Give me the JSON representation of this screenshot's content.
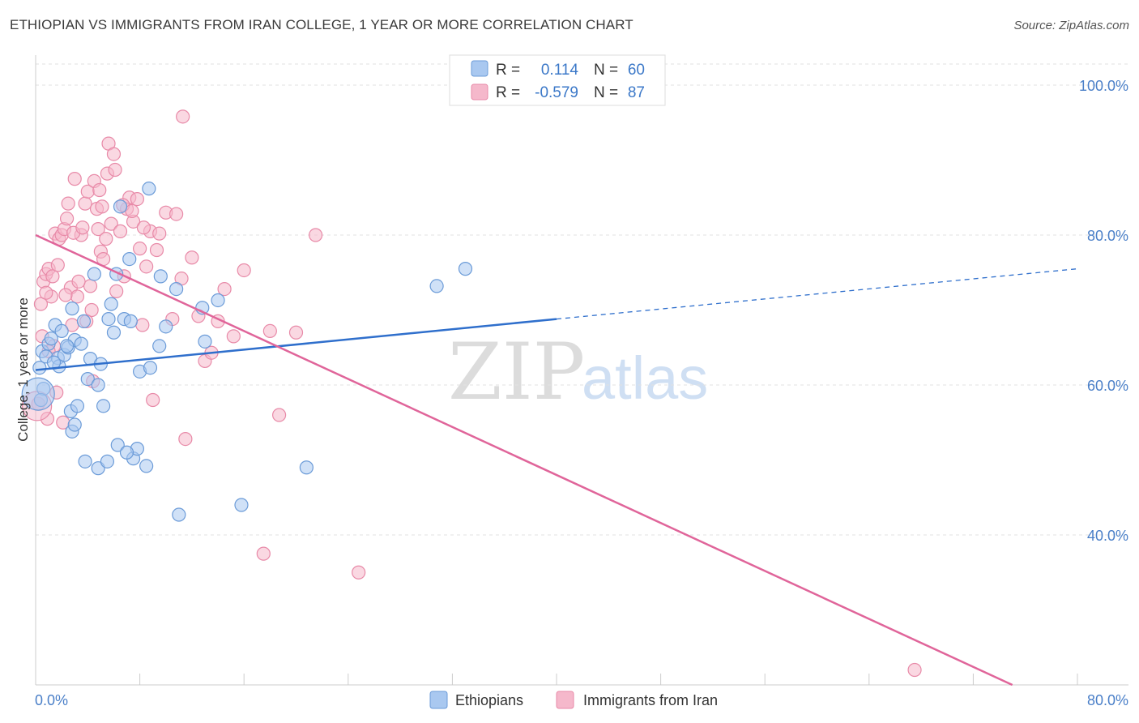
{
  "title": "ETHIOPIAN VS IMMIGRANTS FROM IRAN COLLEGE, 1 YEAR OR MORE CORRELATION CHART",
  "source": "Source: ZipAtlas.com",
  "watermark": {
    "zip": "ZIP",
    "atlas": "atlas"
  },
  "colors": {
    "blue_fill": "#a9c8f0",
    "blue_stroke": "#6b9bd8",
    "blue_line": "#2f6fcc",
    "pink_fill": "#f5b8cb",
    "pink_stroke": "#e88aa8",
    "pink_line": "#e0659a",
    "tick_text": "#4a7fc8",
    "grid": "#e2e2e2"
  },
  "stats": {
    "r_label": "R =",
    "n_label": "N =",
    "blue": {
      "r": "0.114",
      "n": "60"
    },
    "pink": {
      "r": "-0.579",
      "n": "87"
    }
  },
  "chart_data": {
    "type": "scatter",
    "xlabel": "",
    "ylabel": "College, 1 year or more",
    "xlim": [
      0,
      80
    ],
    "ylim": [
      20,
      104
    ],
    "x_tick_labels": [
      "0.0%",
      "80.0%"
    ],
    "y_ticks": [
      40,
      60,
      80,
      100
    ],
    "y_tick_labels": [
      "40.0%",
      "60.0%",
      "80.0%",
      "100.0%"
    ],
    "legend": [
      "Ethiopians",
      "Immigrants from Iran"
    ],
    "series": [
      {
        "name": "Ethiopians",
        "r": 0.114,
        "n": 60,
        "trend": {
          "x0": 0,
          "y0": 62.0,
          "x1": 40,
          "y1": 68.8,
          "x_dash_end": 80,
          "y_dash_end": 75.5
        },
        "points": [
          [
            0.3,
            62.3
          ],
          [
            0.5,
            64.5
          ],
          [
            0.8,
            63.8
          ],
          [
            1.0,
            65.5
          ],
          [
            1.2,
            66.2
          ],
          [
            1.5,
            68.0
          ],
          [
            1.7,
            63.6
          ],
          [
            1.8,
            62.5
          ],
          [
            2.0,
            67.2
          ],
          [
            2.2,
            64.0
          ],
          [
            2.5,
            65.0
          ],
          [
            2.7,
            56.5
          ],
          [
            2.8,
            70.2
          ],
          [
            3.0,
            66.0
          ],
          [
            3.2,
            57.2
          ],
          [
            3.5,
            65.5
          ],
          [
            3.7,
            68.5
          ],
          [
            4.0,
            60.8
          ],
          [
            4.2,
            63.5
          ],
          [
            4.5,
            74.8
          ],
          [
            4.8,
            60.0
          ],
          [
            5.0,
            62.8
          ],
          [
            5.2,
            57.2
          ],
          [
            5.6,
            68.8
          ],
          [
            5.8,
            70.8
          ],
          [
            6.0,
            67.0
          ],
          [
            6.2,
            74.8
          ],
          [
            6.5,
            83.8
          ],
          [
            6.8,
            68.8
          ],
          [
            7.2,
            76.8
          ],
          [
            7.5,
            50.2
          ],
          [
            7.8,
            51.5
          ],
          [
            8.0,
            61.8
          ],
          [
            8.5,
            49.2
          ],
          [
            8.7,
            86.2
          ],
          [
            8.8,
            62.3
          ],
          [
            9.5,
            65.2
          ],
          [
            9.6,
            74.5
          ],
          [
            10.0,
            67.8
          ],
          [
            10.8,
            72.8
          ],
          [
            11.0,
            42.7
          ],
          [
            12.8,
            70.3
          ],
          [
            13.0,
            65.8
          ],
          [
            14.0,
            71.3
          ],
          [
            15.8,
            44.0
          ],
          [
            20.8,
            49.0
          ],
          [
            30.8,
            73.2
          ],
          [
            33.0,
            75.5
          ],
          [
            4.8,
            48.9
          ],
          [
            5.5,
            49.8
          ],
          [
            3.8,
            49.8
          ],
          [
            2.8,
            53.8
          ],
          [
            3.0,
            54.7
          ],
          [
            6.3,
            52.0
          ],
          [
            7.0,
            51.0
          ],
          [
            0.6,
            59.5
          ],
          [
            0.4,
            58.0
          ],
          [
            1.4,
            63.0
          ],
          [
            2.4,
            65.2
          ],
          [
            7.3,
            68.5
          ]
        ]
      },
      {
        "name": "Immigrants from Iran",
        "r": -0.579,
        "n": 87,
        "trend": {
          "x0": 0,
          "y0": 80.0,
          "x1": 75,
          "y1": 20.0
        },
        "points": [
          [
            0.2,
            57.5
          ],
          [
            0.4,
            70.8
          ],
          [
            0.6,
            73.8
          ],
          [
            0.8,
            74.8
          ],
          [
            1.0,
            75.5
          ],
          [
            1.2,
            71.8
          ],
          [
            1.4,
            65.2
          ],
          [
            1.5,
            80.2
          ],
          [
            1.6,
            59.0
          ],
          [
            1.8,
            79.5
          ],
          [
            2.0,
            80.0
          ],
          [
            2.2,
            80.8
          ],
          [
            2.4,
            82.2
          ],
          [
            2.5,
            84.2
          ],
          [
            2.7,
            73.0
          ],
          [
            2.8,
            68.0
          ],
          [
            3.0,
            87.5
          ],
          [
            3.2,
            71.8
          ],
          [
            3.5,
            80.0
          ],
          [
            3.8,
            84.2
          ],
          [
            4.0,
            85.8
          ],
          [
            4.2,
            73.2
          ],
          [
            4.5,
            87.2
          ],
          [
            4.7,
            83.5
          ],
          [
            4.8,
            80.8
          ],
          [
            5.0,
            77.8
          ],
          [
            5.2,
            76.8
          ],
          [
            5.5,
            88.2
          ],
          [
            5.6,
            92.2
          ],
          [
            5.8,
            81.5
          ],
          [
            6.0,
            90.8
          ],
          [
            6.2,
            72.5
          ],
          [
            6.5,
            80.5
          ],
          [
            6.8,
            74.5
          ],
          [
            7.0,
            83.5
          ],
          [
            7.2,
            85.0
          ],
          [
            7.5,
            81.8
          ],
          [
            7.8,
            84.8
          ],
          [
            8.0,
            78.2
          ],
          [
            8.2,
            68.0
          ],
          [
            8.5,
            75.8
          ],
          [
            8.8,
            80.5
          ],
          [
            9.0,
            58.0
          ],
          [
            9.5,
            80.2
          ],
          [
            10.0,
            83.0
          ],
          [
            10.5,
            68.8
          ],
          [
            10.8,
            82.8
          ],
          [
            11.2,
            74.2
          ],
          [
            11.5,
            52.8
          ],
          [
            12.0,
            77.0
          ],
          [
            12.5,
            69.2
          ],
          [
            13.0,
            63.2
          ],
          [
            13.5,
            64.3
          ],
          [
            14.0,
            68.5
          ],
          [
            14.5,
            72.8
          ],
          [
            15.2,
            66.5
          ],
          [
            16.0,
            75.3
          ],
          [
            17.5,
            37.5
          ],
          [
            18.0,
            67.2
          ],
          [
            18.7,
            56.0
          ],
          [
            20.0,
            67.0
          ],
          [
            21.5,
            80.0
          ],
          [
            24.8,
            35.0
          ],
          [
            67.5,
            22.0
          ],
          [
            11.3,
            95.8
          ],
          [
            0.5,
            66.5
          ],
          [
            1.0,
            64.5
          ],
          [
            3.3,
            73.8
          ],
          [
            4.3,
            70.0
          ],
          [
            2.1,
            55.0
          ],
          [
            6.7,
            84.0
          ],
          [
            3.9,
            68.5
          ],
          [
            4.9,
            86.0
          ],
          [
            5.1,
            83.8
          ],
          [
            0.8,
            72.3
          ],
          [
            1.3,
            74.5
          ],
          [
            2.9,
            80.3
          ],
          [
            4.4,
            60.5
          ],
          [
            6.1,
            88.7
          ],
          [
            7.4,
            83.2
          ],
          [
            8.3,
            81.0
          ],
          [
            0.9,
            55.5
          ],
          [
            1.7,
            76.0
          ],
          [
            2.3,
            72.0
          ],
          [
            3.6,
            81.0
          ],
          [
            5.4,
            79.5
          ],
          [
            9.3,
            78.0
          ]
        ]
      }
    ]
  }
}
